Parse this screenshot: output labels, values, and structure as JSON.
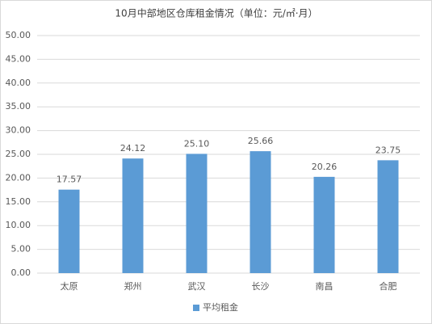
{
  "chart_data": {
    "type": "bar",
    "title": "10月中部地区仓库租金情况（单位：元/㎡·月）",
    "categories": [
      "太原",
      "郑州",
      "武汉",
      "长沙",
      "南昌",
      "合肥"
    ],
    "series": [
      {
        "name": "平均租金",
        "color": "#5b9bd5",
        "values": [
          17.57,
          24.12,
          25.1,
          25.66,
          20.26,
          23.75
        ],
        "value_labels": [
          "17.57",
          "24.12",
          "25.10",
          "25.66",
          "20.26",
          "23.75"
        ]
      }
    ],
    "ylim": [
      0,
      50
    ],
    "yticks": [
      {
        "value": 0,
        "label": "0.00"
      },
      {
        "value": 5,
        "label": "5.00"
      },
      {
        "value": 10,
        "label": "10.00"
      },
      {
        "value": 15,
        "label": "15.00"
      },
      {
        "value": 20,
        "label": "20.00"
      },
      {
        "value": 25,
        "label": "25.00"
      },
      {
        "value": 30,
        "label": "30.00"
      },
      {
        "value": 35,
        "label": "35.00"
      },
      {
        "value": 40,
        "label": "40.00"
      },
      {
        "value": 45,
        "label": "45.00"
      },
      {
        "value": 50,
        "label": "50.00"
      }
    ],
    "grid": true,
    "legend": "bottom"
  }
}
